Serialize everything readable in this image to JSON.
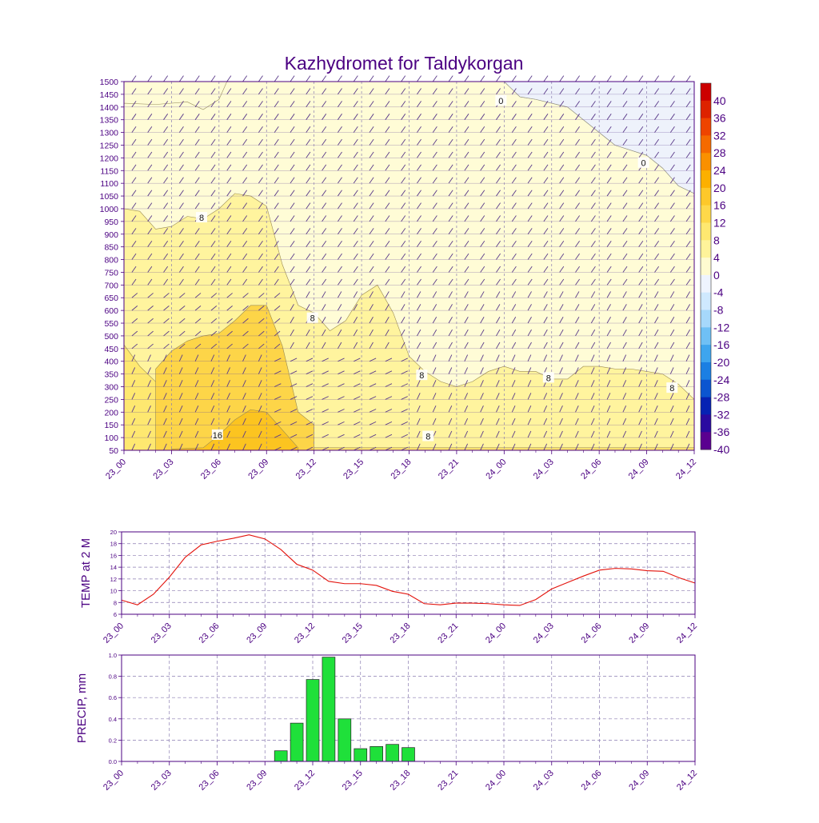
{
  "title": "Kazhydromet for Taldykorgan",
  "time_labels": [
    "23_00",
    "23_03",
    "23_06",
    "23_09",
    "23_12",
    "23_15",
    "23_18",
    "23_21",
    "24_00",
    "24_03",
    "24_06",
    "24_09",
    "24_12"
  ],
  "colors": {
    "axis": "#4b0082",
    "barb": "#5a3a8a",
    "grid": "#8a7bb0",
    "temp_line": "#e3120b",
    "precip_bar": "#1fe03a"
  },
  "chart_data": [
    {
      "type": "heatmap",
      "title": "Kazhydromet for Taldykorgan",
      "description_units": "x in hours from 23_00, y in pressure-level heights 50-1500, contoured temperature in °C with wind barbs",
      "ylim": [
        50,
        1500
      ],
      "yticks": [
        50,
        100,
        150,
        200,
        250,
        300,
        350,
        400,
        450,
        500,
        550,
        600,
        650,
        700,
        750,
        800,
        850,
        900,
        950,
        1000,
        1050,
        1100,
        1150,
        1200,
        1250,
        1300,
        1350,
        1400,
        1450,
        1500
      ],
      "xlim": [
        0,
        36
      ],
      "colorbar": {
        "labels": [
          "40",
          "36",
          "32",
          "28",
          "24",
          "20",
          "16",
          "12",
          "8",
          "4",
          "0",
          "-4",
          "-8",
          "-12",
          "-16",
          "-20",
          "-24",
          "-28",
          "-32",
          "-36",
          "-40"
        ],
        "colors": [
          "#cc0000",
          "#dd2200",
          "#ee4400",
          "#f56a00",
          "#fa9000",
          "#fcb000",
          "#fdc82a",
          "#fed84a",
          "#fee870",
          "#fff39a",
          "#fffbd0",
          "#eef4ff",
          "#cfe9ff",
          "#a6d8fb",
          "#6fc0f5",
          "#3ea5ee",
          "#1b7fe3",
          "#0b55d0",
          "#0622b3",
          "#2a0aa0",
          "#5a0090"
        ]
      },
      "contour_labels": [
        {
          "text": "0",
          "x": 23.8,
          "y": 1425
        },
        {
          "text": "0",
          "x": 32.8,
          "y": 1180
        },
        {
          "text": "8",
          "x": 4.9,
          "y": 965
        },
        {
          "text": "8",
          "x": 11.9,
          "y": 570
        },
        {
          "text": "8",
          "x": 18.8,
          "y": 345
        },
        {
          "text": "8",
          "x": 26.8,
          "y": 335
        },
        {
          "text": "8",
          "x": 34.6,
          "y": 295
        },
        {
          "text": "8",
          "x": 19.2,
          "y": 105
        },
        {
          "text": "16",
          "x": 5.9,
          "y": 110
        }
      ],
      "regions": [
        {
          "name": "below-0",
          "value": -2,
          "color": "#eef2fb",
          "top": [
            [
              24,
              1500
            ],
            [
              25,
              1440
            ],
            [
              26,
              1430
            ],
            [
              28,
              1400
            ],
            [
              30,
              1300
            ],
            [
              31,
              1250
            ],
            [
              33,
              1210
            ],
            [
              34,
              1160
            ],
            [
              35,
              1090
            ],
            [
              36,
              1060
            ],
            [
              36,
              1500
            ]
          ]
        },
        {
          "name": "0-4",
          "value": 2,
          "color": "#fffcd6",
          "top": [
            [
              0,
              1415
            ],
            [
              2,
              1410
            ],
            [
              4,
              1420
            ],
            [
              5,
              1390
            ],
            [
              6,
              1430
            ],
            [
              6.5,
              1500
            ],
            [
              24,
              1500
            ],
            [
              25,
              1440
            ],
            [
              26,
              1430
            ],
            [
              28,
              1400
            ],
            [
              30,
              1300
            ],
            [
              31,
              1250
            ],
            [
              33,
              1210
            ],
            [
              34,
              1160
            ],
            [
              35,
              1090
            ],
            [
              36,
              1060
            ]
          ]
        },
        {
          "name": "4-8",
          "value": 6,
          "color": "#fff49e",
          "top": [
            [
              0,
              1000
            ],
            [
              1,
              990
            ],
            [
              2,
              920
            ],
            [
              3,
              930
            ],
            [
              4,
              970
            ],
            [
              5,
              960
            ],
            [
              6,
              1000
            ],
            [
              7,
              1060
            ],
            [
              8,
              1050
            ],
            [
              9,
              1010
            ],
            [
              10,
              780
            ],
            [
              11,
              620
            ],
            [
              12,
              590
            ],
            [
              13,
              520
            ],
            [
              14,
              560
            ],
            [
              15,
              660
            ],
            [
              16,
              700
            ],
            [
              17,
              590
            ],
            [
              18,
              420
            ],
            [
              19,
              360
            ],
            [
              20,
              320
            ],
            [
              21,
              300
            ],
            [
              22,
              320
            ],
            [
              23,
              360
            ],
            [
              24,
              380
            ],
            [
              25,
              360
            ],
            [
              26,
              360
            ],
            [
              27,
              330
            ],
            [
              28,
              330
            ],
            [
              29,
              380
            ],
            [
              30,
              380
            ],
            [
              31,
              370
            ],
            [
              32,
              370
            ],
            [
              33,
              360
            ],
            [
              34,
              350
            ],
            [
              35,
              310
            ],
            [
              36,
              250
            ]
          ]
        },
        {
          "name": "8-12",
          "value": 10,
          "color": "#fee870",
          "top": [
            [
              0,
              465
            ],
            [
              1,
              380
            ],
            [
              2,
              320
            ],
            [
              3,
              300
            ],
            [
              4,
              280
            ],
            [
              5,
              260
            ],
            [
              6,
              240
            ],
            [
              7,
              220
            ],
            [
              8,
              210
            ],
            [
              9,
              170
            ],
            [
              10,
              100
            ],
            [
              11,
              75
            ],
            [
              12,
              60
            ],
            [
              36,
              60
            ]
          ]
        },
        {
          "name": "12-16",
          "value": 14,
          "color": "#fdd548",
          "top": [
            [
              2,
              370
            ],
            [
              3,
              440
            ],
            [
              4,
              480
            ],
            [
              5,
              500
            ],
            [
              6,
              510
            ],
            [
              7,
              560
            ],
            [
              8,
              620
            ],
            [
              9,
              620
            ],
            [
              10,
              460
            ],
            [
              11,
              200
            ],
            [
              12,
              150
            ],
            [
              12,
              50
            ],
            [
              2,
              50
            ]
          ]
        },
        {
          "name": "16-20",
          "value": 18,
          "color": "#fcc420",
          "top": [
            [
              3,
              55
            ],
            [
              5,
              60
            ],
            [
              6,
              110
            ],
            [
              7,
              170
            ],
            [
              8,
              210
            ],
            [
              9,
              200
            ],
            [
              10,
              130
            ],
            [
              11,
              60
            ],
            [
              11,
              50
            ],
            [
              3,
              50
            ]
          ]
        }
      ]
    },
    {
      "type": "line",
      "ylabel": "TEMP at 2 M",
      "ylim": [
        6,
        20
      ],
      "yticks": [
        6,
        8,
        10,
        12,
        14,
        16,
        18,
        20
      ],
      "xlabel": "",
      "x": [
        0,
        1,
        2,
        3,
        4,
        5,
        6,
        7,
        8,
        9,
        10,
        11,
        12,
        13,
        14,
        15,
        16,
        17,
        18,
        19,
        20,
        21,
        22,
        23,
        24,
        25,
        26,
        27,
        28,
        29,
        30,
        31,
        32,
        33,
        34,
        35,
        36
      ],
      "series": [
        {
          "values": [
            8.4,
            7.6,
            9.4,
            12.3,
            15.7,
            17.8,
            18.4,
            18.9,
            19.5,
            18.8,
            17.0,
            14.5,
            13.5,
            11.6,
            11.2,
            11.2,
            10.9,
            9.9,
            9.4,
            7.8,
            7.6,
            7.9,
            7.9,
            7.8,
            7.6,
            7.5,
            8.5,
            10.3,
            11.4,
            12.5,
            13.5,
            13.8,
            13.7,
            13.4,
            13.3,
            12.2,
            11.3
          ]
        }
      ]
    },
    {
      "type": "bar",
      "ylabel": "PRECIP, mm",
      "ylim": [
        0,
        1.0
      ],
      "yticks": [
        "0.0",
        "0.2",
        "0.4",
        "0.6",
        "0.8",
        "1.0"
      ],
      "xlabel": "",
      "x": [
        10,
        11,
        12,
        13,
        14,
        15,
        16,
        17,
        18
      ],
      "values": [
        0.1,
        0.36,
        0.77,
        0.98,
        0.4,
        0.12,
        0.14,
        0.16,
        0.13
      ]
    }
  ]
}
